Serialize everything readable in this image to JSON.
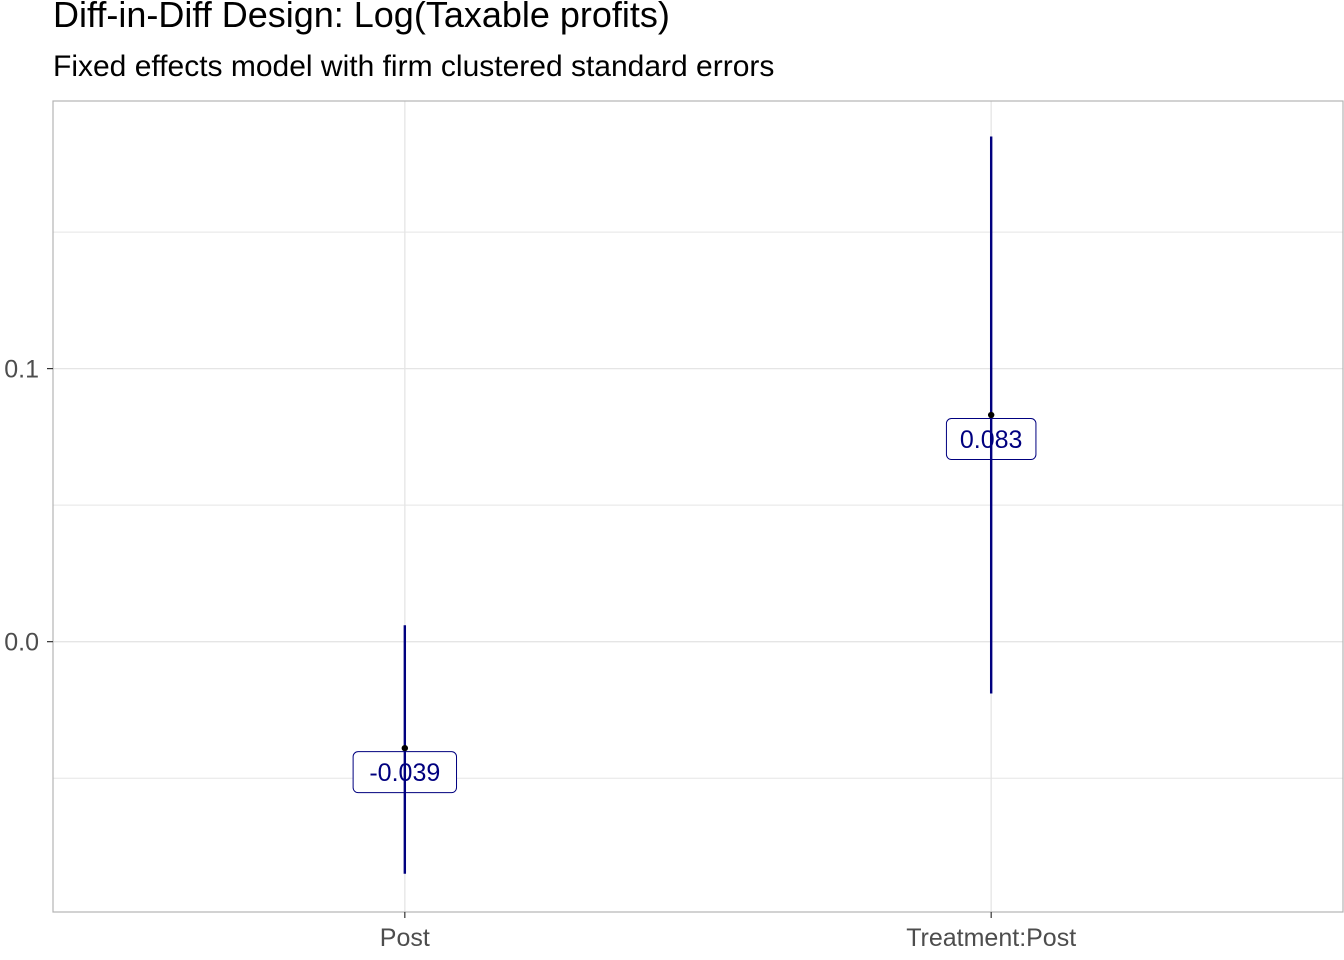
{
  "chart_data": {
    "type": "errorbar",
    "title": "Diff-in-Diff Design: Log(Taxable profits)",
    "subtitle": "Fixed effects model with firm clustered standard errors",
    "xlabel": "",
    "ylabel": "",
    "categories": [
      "Post",
      "Treatment:Post"
    ],
    "estimates": [
      -0.039,
      0.083
    ],
    "ci_lower": [
      -0.085,
      -0.019
    ],
    "ci_upper": [
      0.006,
      0.185
    ],
    "data_labels": [
      "-0.039",
      "0.083"
    ],
    "y_ticks": [
      0.0,
      0.1
    ],
    "y_tick_labels": [
      "0.0",
      "0.1"
    ],
    "ylim": [
      -0.099,
      0.198
    ],
    "grid": true,
    "legend": "none",
    "colors": {
      "series": "#00007F",
      "grid": "#E5E5E5",
      "panel_border": "#B3B3B3",
      "tick_text": "#4D4D4D"
    }
  }
}
